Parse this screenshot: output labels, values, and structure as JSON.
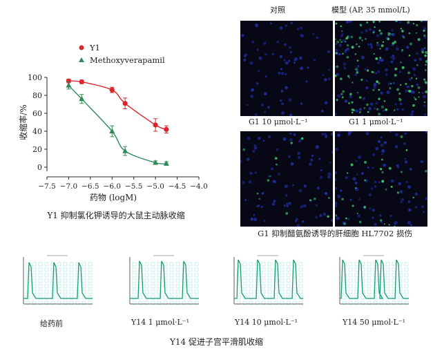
{
  "chart_data": {
    "type": "scatter",
    "xlabel": "药物 (logM)",
    "ylabel": "收缩率/%",
    "xlim": [
      -7.5,
      -4.0
    ],
    "ylim": [
      0,
      100
    ],
    "xticks": [
      "-7.5",
      "-7.0",
      "-6.5",
      "-6.0",
      "-5.5",
      "-5.0",
      "-4.5",
      "-4.0"
    ],
    "yticks": [
      "0",
      "20",
      "40",
      "60",
      "80",
      "100"
    ],
    "series": [
      {
        "name": "Y1",
        "color": "#d9262a",
        "marker": "circle",
        "x": [
          -7.0,
          -6.7,
          -6.0,
          -5.7,
          -5.0,
          -4.75
        ],
        "y": [
          96,
          95,
          86,
          71,
          47,
          42
        ],
        "err": [
          2,
          2,
          3,
          6,
          7,
          4
        ]
      },
      {
        "name": "Methoxyverapamil",
        "color": "#2e8b57",
        "marker": "triangle",
        "x": [
          -7.0,
          -6.7,
          -6.0,
          -5.7,
          -5.0,
          -4.75
        ],
        "y": [
          91,
          76,
          40,
          18,
          5,
          4
        ],
        "err": [
          4,
          5,
          6,
          5,
          2,
          2
        ]
      }
    ]
  },
  "top_left": {
    "caption": "Y1 抑制氯化钾诱导的大鼠主动脉收缩"
  },
  "top_right": {
    "header_left": "对照",
    "header_right": "模型  (AP, 35 mmol/L)",
    "label_top_left": "G1 10 μmol·L⁻¹",
    "label_top_right": "G1 1 μmol·L⁻¹",
    "caption": "G1 抑制醋氨酚诱导的肝细胞 HL7702 损伤",
    "cell_colors": {
      "nucleus": "#1f2d9c",
      "damaged": "#3fbf6a"
    }
  },
  "bottom": {
    "labels": [
      "给药前",
      "Y14  1 μmol·L⁻¹",
      "Y14 10 μmol·L⁻¹",
      "Y14 50 μmol·L⁻¹"
    ],
    "caption": "Y14 促进子宫平滑肌收缩",
    "trace_color": "#1a9a6c",
    "grid_color": "#7fd3d6"
  }
}
